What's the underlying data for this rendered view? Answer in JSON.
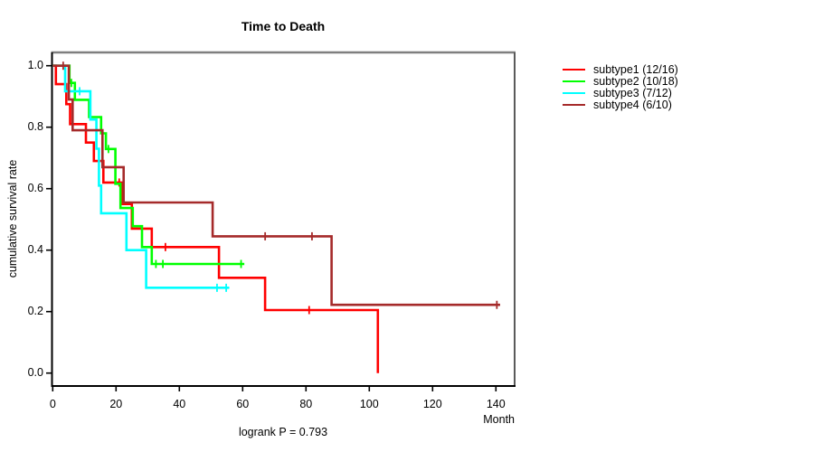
{
  "chart_data": {
    "type": "line",
    "subtype_km": "kaplan-meier-step",
    "title": "Time to Death",
    "subtitle": "logrank P = 0.793",
    "xlabel": "Month",
    "ylabel": "cumulative survival rate",
    "xlim": [
      0,
      146
    ],
    "ylim": [
      0,
      1
    ],
    "xtick_values": [
      0,
      20,
      40,
      60,
      80,
      100,
      120,
      140
    ],
    "xtick_labels": [
      "0",
      "20",
      "40",
      "60",
      "80",
      "100",
      "120",
      "140"
    ],
    "ytick_values": [
      0.0,
      0.2,
      0.4,
      0.6,
      0.8,
      1.0
    ],
    "ytick_labels": [
      "0.0",
      "0.2",
      "0.4",
      "0.6",
      "0.8",
      "1.0"
    ],
    "grid": false,
    "legend_position": "right-outside",
    "series": [
      {
        "name": "subtype1",
        "label": "subtype1 (12/16)",
        "color": "#ff0000",
        "steps": [
          [
            0,
            1.0
          ],
          [
            1,
            0.94
          ],
          [
            4.3,
            0.875
          ],
          [
            5.5,
            0.81
          ],
          [
            10.5,
            0.75
          ],
          [
            13,
            0.69
          ],
          [
            16,
            0.62
          ],
          [
            22,
            0.55
          ],
          [
            25,
            0.47
          ],
          [
            31.3,
            0.41
          ],
          [
            52.5,
            0.31
          ],
          [
            67.1,
            0.205
          ],
          [
            102.7,
            0.0
          ]
        ],
        "end_month": 102.7,
        "censors": [
          [
            21,
            0.62
          ],
          [
            35.6,
            0.41
          ],
          [
            81,
            0.205
          ]
        ]
      },
      {
        "name": "subtype2",
        "label": "subtype2 (10/18)",
        "color": "#00ff00",
        "steps": [
          [
            0,
            1.0
          ],
          [
            5.3,
            0.944
          ],
          [
            7,
            0.889
          ],
          [
            11.5,
            0.833
          ],
          [
            15.3,
            0.78
          ],
          [
            16.8,
            0.729
          ],
          [
            19.8,
            0.616
          ],
          [
            21.4,
            0.537
          ],
          [
            25.3,
            0.478
          ],
          [
            28.2,
            0.41
          ],
          [
            31.3,
            0.355
          ]
        ],
        "end_month": 60.5,
        "censors": [
          [
            5.9,
            0.944
          ],
          [
            17.6,
            0.729
          ],
          [
            32.6,
            0.355
          ],
          [
            34.8,
            0.355
          ],
          [
            59.5,
            0.355
          ]
        ]
      },
      {
        "name": "subtype3",
        "label": "subtype3 (7/12)",
        "color": "#00ffff",
        "steps": [
          [
            0,
            1.0
          ],
          [
            3.9,
            0.917
          ],
          [
            11.9,
            0.825
          ],
          [
            13.8,
            0.73
          ],
          [
            14.6,
            0.61
          ],
          [
            15.3,
            0.52
          ],
          [
            23.3,
            0.4
          ],
          [
            29.5,
            0.2775
          ]
        ],
        "end_month": 55.7,
        "censors": [
          [
            8.5,
            0.917
          ],
          [
            51.9,
            0.2775
          ],
          [
            54.8,
            0.2775
          ]
        ]
      },
      {
        "name": "subtype4",
        "label": "subtype4 (6/10)",
        "color": "#a52a2a",
        "steps": [
          [
            0,
            1.0
          ],
          [
            5.1,
            0.89
          ],
          [
            6.3,
            0.79
          ],
          [
            15.7,
            0.67
          ],
          [
            22.4,
            0.555
          ],
          [
            50.5,
            0.445
          ],
          [
            88.1,
            0.222
          ]
        ],
        "end_month": 141.3,
        "censors": [
          [
            3.3,
            1.0
          ],
          [
            67.1,
            0.445
          ],
          [
            81.9,
            0.445
          ],
          [
            140.3,
            0.222
          ]
        ]
      }
    ]
  }
}
